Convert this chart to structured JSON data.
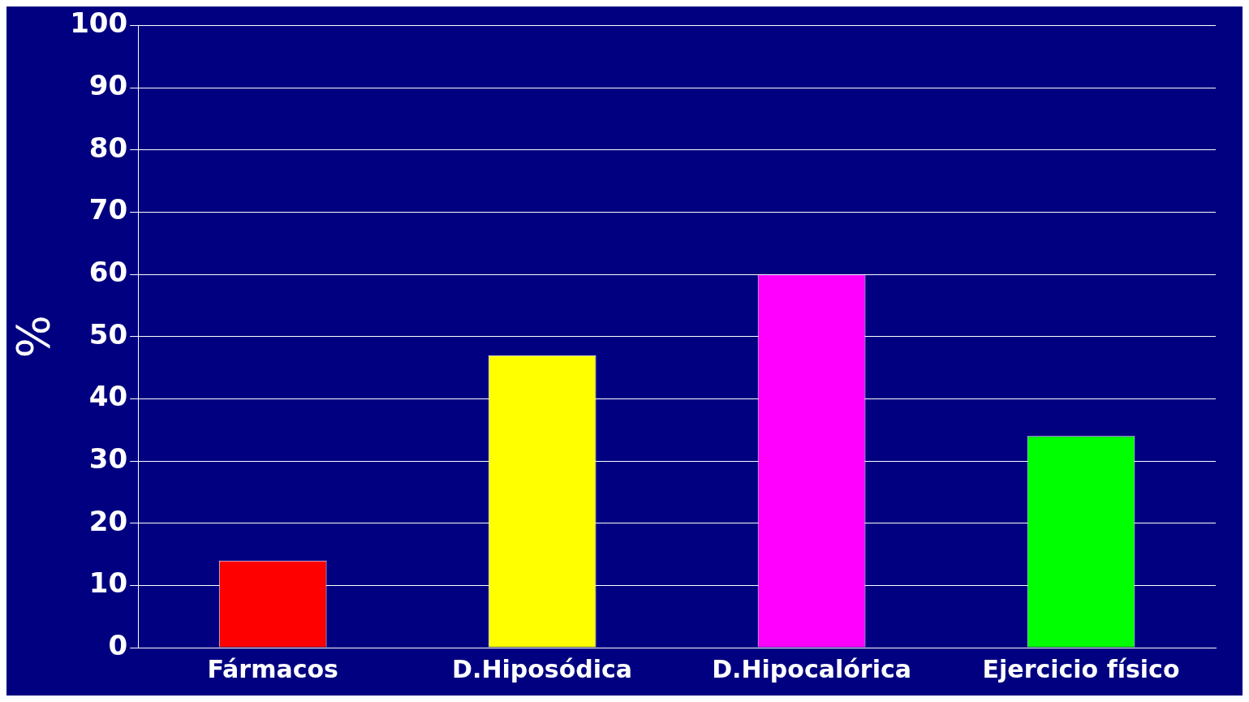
{
  "chart_data": {
    "type": "bar",
    "ylabel": "%",
    "categories": [
      "Fármacos",
      "D.Hiposódica",
      "D.Hipocalórica",
      "Ejercicio físico"
    ],
    "values": [
      14,
      47,
      60,
      34
    ],
    "colors": [
      "#ff0000",
      "#ffff00",
      "#ff00ff",
      "#00ff00"
    ],
    "ylim": [
      0,
      100
    ],
    "yticks": [
      0,
      10,
      20,
      30,
      40,
      50,
      60,
      70,
      80,
      90,
      100
    ],
    "grid": "y",
    "legend": false
  }
}
